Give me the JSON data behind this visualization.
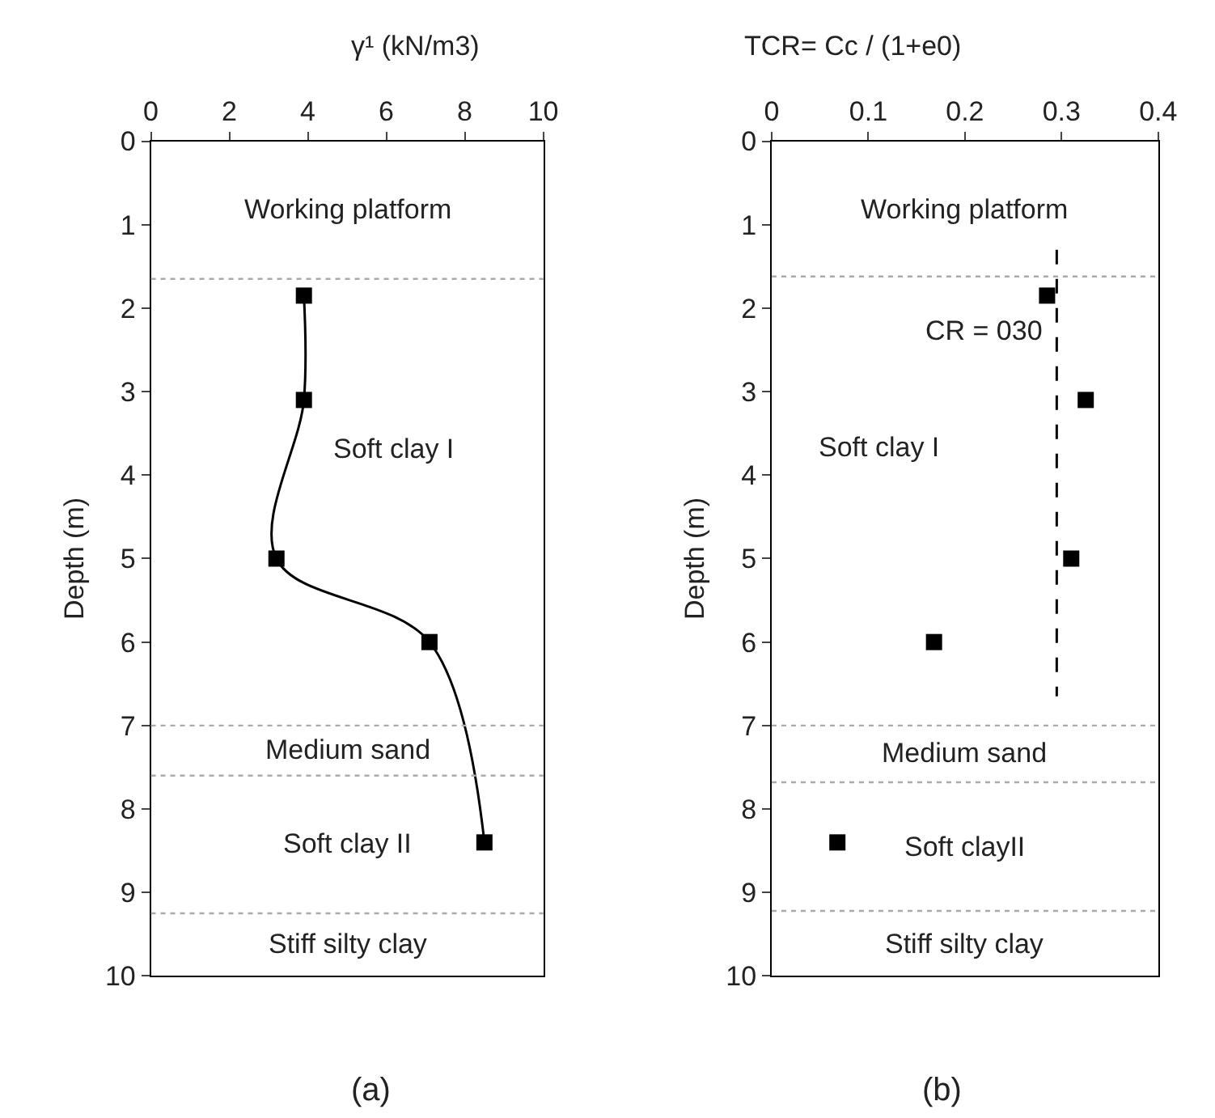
{
  "chart_data": [
    {
      "type": "line",
      "title": "(a)",
      "xlabel": "γ¹ (kN/m3)",
      "ylabel": "Depth (m)",
      "xlim": [
        0,
        10
      ],
      "xticks": [
        0,
        2,
        4,
        6,
        8,
        10
      ],
      "ylim": [
        10,
        0
      ],
      "yticks": [
        0,
        1,
        2,
        3,
        4,
        5,
        6,
        7,
        8,
        9,
        10
      ],
      "grid": false,
      "legend": false,
      "marker": "square",
      "line_style": "solid",
      "series": [
        {
          "color": "#000000",
          "x": [
            3.9,
            3.9,
            3.2,
            7.1,
            8.5
          ],
          "values": [
            1.85,
            3.1,
            5.0,
            6.0,
            8.4
          ]
        }
      ],
      "ref_lines": [
        {
          "axis": "y",
          "value": 1.65,
          "color": "#aaaaaa",
          "line_style": "dotted"
        },
        {
          "axis": "y",
          "value": 7.0,
          "color": "#aaaaaa",
          "line_style": "dotted"
        },
        {
          "axis": "y",
          "value": 7.6,
          "color": "#aaaaaa",
          "line_style": "dotted"
        },
        {
          "axis": "y",
          "value": 9.25,
          "color": "#aaaaaa",
          "line_style": "dotted"
        }
      ],
      "annotations": [
        "Working platform",
        "Soft clay I",
        "Medium sand",
        "Soft clay II",
        "Stiff silty clay"
      ]
    },
    {
      "type": "scatter",
      "title": "(b)",
      "xlabel": "TCR= Cc / (1+e0)",
      "ylabel": "Depth (m)",
      "xlim": [
        0,
        0.4
      ],
      "xticks": [
        0,
        0.1,
        0.2,
        0.3,
        0.4
      ],
      "ylim": [
        10,
        0
      ],
      "yticks": [
        0,
        1,
        2,
        3,
        4,
        5,
        6,
        7,
        8,
        9,
        10
      ],
      "grid": false,
      "legend": false,
      "marker": "square",
      "series": [
        {
          "color": "#000000",
          "x": [
            0.285,
            0.325,
            0.31,
            0.168,
            0.068
          ],
          "values": [
            1.85,
            3.1,
            5.0,
            6.0,
            8.4
          ]
        },
        {
          "type": "line",
          "name": "CR = 030",
          "color": "#000000",
          "line_style": "dashed",
          "marker": "none",
          "x": [
            0.295,
            0.295
          ],
          "values": [
            1.3,
            6.65
          ]
        }
      ],
      "ref_lines": [
        {
          "axis": "y",
          "value": 1.62,
          "color": "#aaaaaa",
          "line_style": "dotted"
        },
        {
          "axis": "y",
          "value": 7.0,
          "color": "#aaaaaa",
          "line_style": "dotted"
        },
        {
          "axis": "y",
          "value": 7.68,
          "color": "#aaaaaa",
          "line_style": "dotted"
        },
        {
          "axis": "y",
          "value": 9.22,
          "color": "#aaaaaa",
          "line_style": "dotted"
        }
      ],
      "annotations": [
        "Working platform",
        "Soft clay I",
        "Medium sand",
        "Soft clayII",
        "Stiff silty clay"
      ]
    }
  ]
}
